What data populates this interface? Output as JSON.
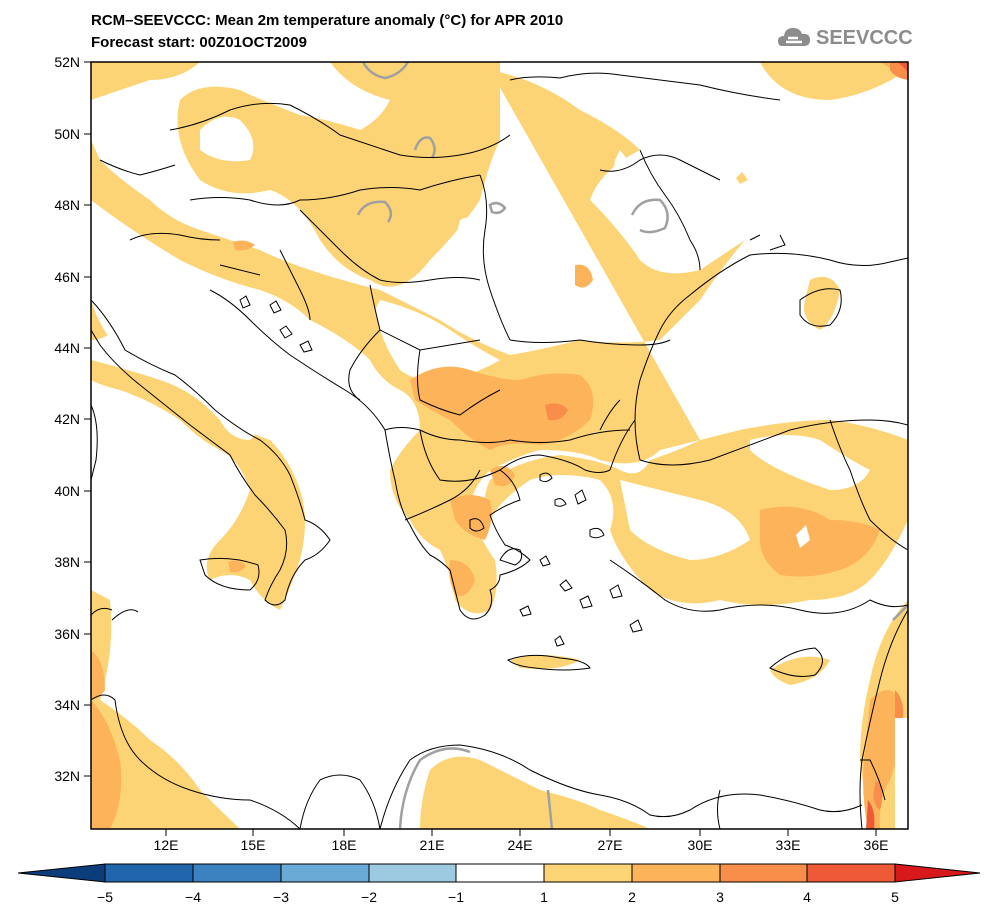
{
  "header": {
    "title": "RCM–SEEVCCC: Mean 2m temperature anomaly (°C) for APR 2010",
    "subtitle": "Forecast start: 00Z01OCT2009"
  },
  "logo": {
    "text": "SEEVCCC",
    "icon": "cloud-icon"
  },
  "map": {
    "lat_labels": [
      "52N",
      "50N",
      "48N",
      "46N",
      "44N",
      "42N",
      "40N",
      "38N",
      "36N",
      "34N",
      "32N"
    ],
    "lon_labels": [
      "12E",
      "15E",
      "18E",
      "21E",
      "24E",
      "27E",
      "30E",
      "33E",
      "36E"
    ],
    "lat_range": [
      30.5,
      52
    ],
    "lon_range": [
      9.5,
      37
    ],
    "coastline_color": "#000000",
    "contour_color": "#a0a0a0"
  },
  "colorbar": {
    "tick_labels": [
      "−5",
      "−4",
      "−3",
      "−2",
      "−1",
      "1",
      "2",
      "3",
      "4",
      "5"
    ],
    "colors": {
      "below_min": "#0a3d7a",
      "b_m5_m4": "#2166ac",
      "b_m4_m3": "#3c82c0",
      "b_m3_m2": "#6aaad6",
      "b_m2_m1": "#9ecae1",
      "b_m1_1": "#ffffff",
      "b_1_2": "#fdd475",
      "b_2_3": "#fdb35a",
      "b_3_4": "#f88e4a",
      "b_4_5": "#ee5a36",
      "above_max": "#d7191c"
    }
  }
}
